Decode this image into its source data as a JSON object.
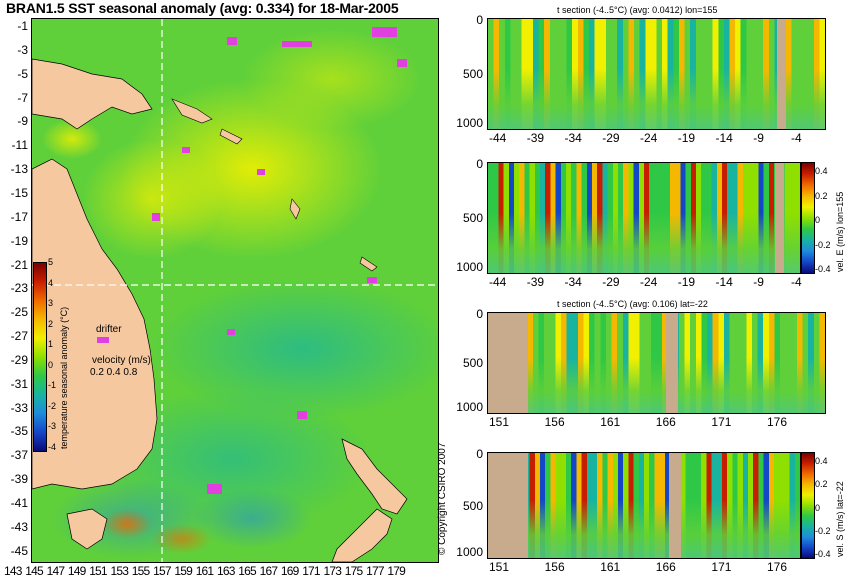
{
  "title": "BRAN1.5 SST seasonal anomaly (avg: 0.334) for 18-Mar-2005",
  "map": {
    "lat_ticks": [
      "-1",
      "-3",
      "-5",
      "-7",
      "-9",
      "-11",
      "-13",
      "-15",
      "-17",
      "-19",
      "-21",
      "-23",
      "-25",
      "-27",
      "-29",
      "-31",
      "-33",
      "-35",
      "-37",
      "-39",
      "-41",
      "-43",
      "-45"
    ],
    "lon_ticks": [
      "143",
      "145",
      "147",
      "149",
      "151",
      "153",
      "155",
      "157",
      "159",
      "161",
      "163",
      "165",
      "167",
      "169",
      "171",
      "173",
      "175",
      "177",
      "179"
    ],
    "colorbar": {
      "label": "temperature seasonal anomaly (°C)",
      "ticks": [
        "5",
        "4",
        "3",
        "2",
        "1",
        "0",
        "-1",
        "-2",
        "-3",
        "-4"
      ],
      "colors": [
        "#7a0000",
        "#c81e00",
        "#f06a00",
        "#f5b800",
        "#f0f000",
        "#8fe000",
        "#2fc846",
        "#18b4a0",
        "#1e8cdc",
        "#1446c8",
        "#0a0a78"
      ]
    },
    "drifter_label": "drifter",
    "velocity_label": "velocity (m/s)",
    "velocity_scale": "0.2 0.4 0.8",
    "copyright": "© Copyright CSIRO 2007",
    "section_lon_label": "155",
    "section_lat_label": "-22"
  },
  "panels": [
    {
      "title": "t section (-4..5°C) (avg: 0.0412) lon=155",
      "x_ticks": [
        "-44",
        "-39",
        "-34",
        "-29",
        "-24",
        "-19",
        "-14",
        "-9",
        "-4"
      ],
      "y_ticks": [
        "0",
        "500",
        "1000"
      ],
      "colorbar": null
    },
    {
      "title": "",
      "x_ticks": [
        "-44",
        "-39",
        "-34",
        "-29",
        "-24",
        "-19",
        "-14",
        "-9",
        "-4"
      ],
      "y_ticks": [
        "0",
        "500",
        "1000"
      ],
      "colorbar": {
        "label": "vel. E (m/s) lon=155",
        "ticks": [
          "0.4",
          "0.2",
          "0",
          "-0.2",
          "-0.4"
        ]
      }
    },
    {
      "title": "t section (-4..5°C) (avg: 0.106) lat=-22",
      "x_ticks": [
        "151",
        "156",
        "161",
        "166",
        "171",
        "176"
      ],
      "y_ticks": [
        "0",
        "500",
        "1000"
      ],
      "colorbar": null
    },
    {
      "title": "",
      "x_ticks": [
        "151",
        "156",
        "161",
        "166",
        "171",
        "176"
      ],
      "y_ticks": [
        "0",
        "500",
        "1000"
      ],
      "colorbar": {
        "label": "vel. S (m/s) lat=-22",
        "ticks": [
          "0.4",
          "0.2",
          "0",
          "-0.2",
          "-0.4"
        ]
      }
    }
  ]
}
